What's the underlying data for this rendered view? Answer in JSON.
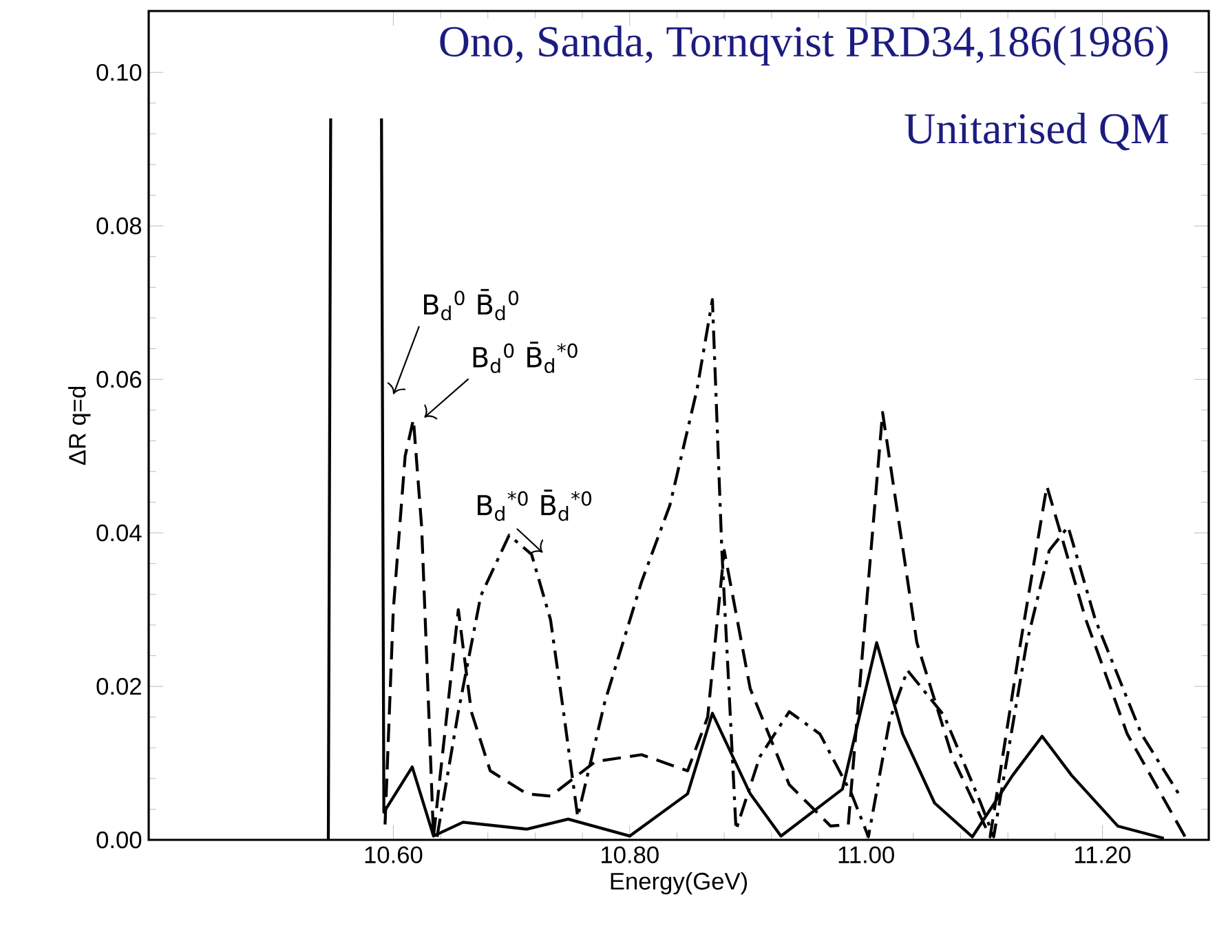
{
  "chart_data": {
    "type": "line",
    "xlabel": "Energy(GeV)",
    "ylabel": "ΔR q=d",
    "annotations": [
      "Ono, Sanda, Tornqvist PRD34,186(1986)",
      "Unitarised QM"
    ],
    "xlim": [
      10.393,
      11.29
    ],
    "ylim": [
      0,
      0.108
    ],
    "xticks": [
      {
        "value": 10.6,
        "label": "10.60"
      },
      {
        "value": 10.8,
        "label": "10.80"
      },
      {
        "value": 11.0,
        "label": "11.00"
      },
      {
        "value": 11.2,
        "label": "11.20"
      }
    ],
    "yticks": [
      {
        "value": 0,
        "label": "0.00"
      },
      {
        "value": 0.02,
        "label": "0.02"
      },
      {
        "value": 0.04,
        "label": "0.04"
      },
      {
        "value": 0.06,
        "label": "0.06"
      },
      {
        "value": 0.08,
        "label": "0.08"
      },
      {
        "value": 0.1,
        "label": "0.10"
      }
    ],
    "series": [
      {
        "name": "B$_{d}$$^{0}$ B̄$_{d}$$^{0}$",
        "color": "#000000",
        "line_style": "solid",
        "x": [
          10.545,
          10.547,
          10.568,
          10.59,
          10.592,
          10.616,
          10.634,
          10.659,
          10.713,
          10.748,
          10.8,
          10.849,
          10.87,
          10.902,
          10.928,
          10.98,
          11.009,
          11.031,
          11.058,
          11.09,
          11.124,
          11.149,
          11.174,
          11.213,
          11.252
        ],
        "values": [
          0.0,
          0.094,
          null,
          0.094,
          0.0036,
          0.0095,
          0.0005,
          0.0023,
          0.0014,
          0.0027,
          0.0005,
          0.006,
          0.0165,
          0.006,
          0.0005,
          0.0066,
          0.0257,
          0.0138,
          0.0048,
          0.0004,
          0.0084,
          0.0135,
          0.0084,
          0.0018,
          0.0002
        ]
      },
      {
        "name": "B$_{d}$$^{0}$ B̄$_{d}$$^{*0}$",
        "color": "#000000",
        "line_style": "dashed",
        "x": [
          10.593,
          10.6,
          10.61,
          10.617,
          10.624,
          10.63,
          10.634,
          10.655,
          10.666,
          10.682,
          10.713,
          10.733,
          10.771,
          10.81,
          10.849,
          10.866,
          10.88,
          10.902,
          10.935,
          10.97,
          10.985,
          11.0,
          11.014,
          11.043,
          11.073,
          11.105,
          11.13,
          11.153,
          11.186,
          11.221,
          11.27
        ],
        "values": [
          0.002,
          0.03,
          0.05,
          0.0548,
          0.0407,
          0.0167,
          0.0004,
          0.03,
          0.0167,
          0.009,
          0.006,
          0.0057,
          0.0102,
          0.0111,
          0.009,
          0.016,
          0.0377,
          0.0197,
          0.0072,
          0.0018,
          0.002,
          0.03,
          0.0557,
          0.0257,
          0.0108,
          0.0004,
          0.025,
          0.0461,
          0.0287,
          0.0138,
          0.0004
        ]
      },
      {
        "name": "B$_{d}$$^{*0}$ B̄$_{d}$$^{*0}$",
        "color": "#000000",
        "line_style": "dashdot",
        "x": [
          10.637,
          10.655,
          10.674,
          10.698,
          10.717,
          10.733,
          10.744,
          10.756,
          10.779,
          10.81,
          10.834,
          10.857,
          10.87,
          10.878,
          10.884,
          10.89,
          10.91,
          10.935,
          10.961,
          10.988,
          11.002,
          11.02,
          11.035,
          11.066,
          11.097,
          11.108,
          11.136,
          11.155,
          11.171,
          11.194,
          11.233,
          11.267
        ],
        "values": [
          0.0004,
          0.0167,
          0.0318,
          0.0397,
          0.0372,
          0.0287,
          0.0167,
          0.003,
          0.018,
          0.0336,
          0.0436,
          0.0587,
          0.0704,
          0.0377,
          0.0197,
          0.0013,
          0.0108,
          0.0167,
          0.0138,
          0.0059,
          0.0004,
          0.0156,
          0.0221,
          0.0162,
          0.0048,
          0.0004,
          0.0257,
          0.0377,
          0.0408,
          0.0287,
          0.0138,
          0.0054
        ]
      }
    ]
  }
}
